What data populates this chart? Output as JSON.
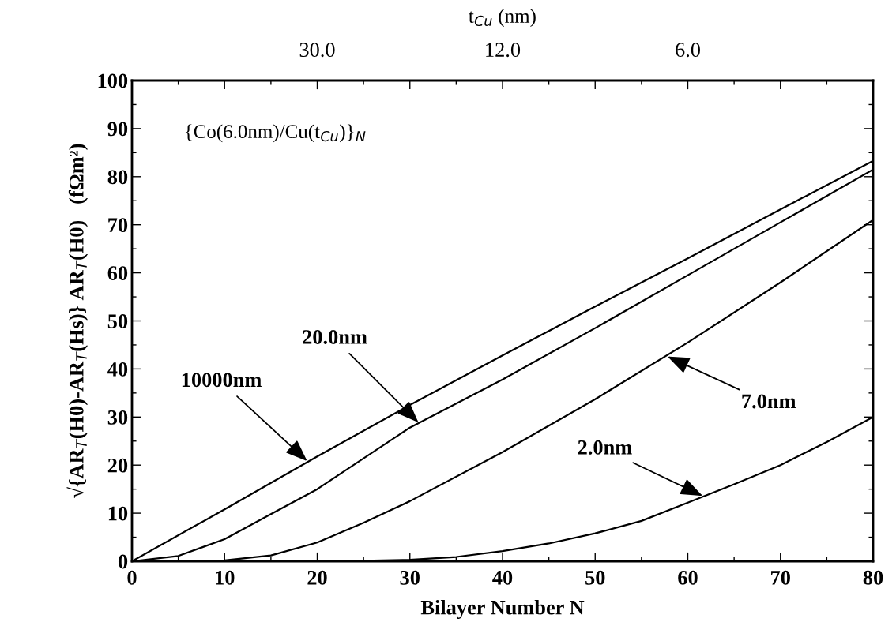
{
  "chart_data": {
    "type": "line",
    "xlabel": "Bilayer Number N",
    "ylabel": "√{AR$_{T}$(H0)-AR$_{T}$(Hs)} AR$_{T}$(H0)   (fΩm²)",
    "xlim": [
      0,
      80
    ],
    "xticks": [
      0,
      10,
      20,
      30,
      40,
      50,
      60,
      70,
      80
    ],
    "ylim": [
      0,
      100
    ],
    "yticks": [
      0,
      10,
      20,
      30,
      40,
      50,
      60,
      70,
      80,
      90,
      100
    ],
    "grid": false,
    "legend": false,
    "marker": "none",
    "line_style": "solid",
    "series": [
      {
        "color": "#000000",
        "x": [
          0,
          10,
          20,
          30,
          40,
          50,
          60,
          70,
          80
        ],
        "values": [
          0,
          10.8,
          21.8,
          32.5,
          42.8,
          53,
          63,
          73.2,
          83.3
        ]
      },
      {
        "color": "#000000",
        "x": [
          0,
          5,
          10,
          15,
          20,
          30,
          40,
          50,
          60,
          70,
          80
        ],
        "values": [
          0,
          1.1,
          4.6,
          9.8,
          15,
          27.8,
          37.8,
          48.5,
          59.5,
          70.5,
          81.5
        ]
      },
      {
        "color": "#000000",
        "x": [
          0,
          5,
          10,
          15,
          20,
          25,
          30,
          40,
          50,
          60,
          70,
          80
        ],
        "values": [
          0,
          0,
          0.2,
          1.2,
          3.9,
          8,
          12.5,
          22.7,
          33.7,
          45.5,
          58,
          71
        ]
      },
      {
        "color": "#000000",
        "x": [
          0,
          10,
          20,
          25,
          30,
          35,
          40,
          45,
          50,
          55,
          60,
          65,
          70,
          75,
          80
        ],
        "values": [
          0,
          0,
          0,
          0.1,
          0.3,
          0.9,
          2.1,
          3.7,
          5.8,
          8.4,
          12.2,
          16,
          20,
          24.8,
          30
        ]
      }
    ],
    "annotations": [
      "{Co(6.0nm)/Cu(t$_{Cu}$)}$_{N}$",
      "t$_{Cu}$ (nm)",
      "30.0",
      "12.0",
      "6.0",
      {
        "text": "10000nm",
        "x": 19,
        "y": 20.7
      },
      {
        "text": "20.0nm",
        "x": 31,
        "y": 28.7
      },
      {
        "text": "7.0nm",
        "x": 57.7,
        "y": 42.7
      },
      {
        "text": "2.0nm",
        "x": 61.7,
        "y": 13.5
      }
    ]
  }
}
